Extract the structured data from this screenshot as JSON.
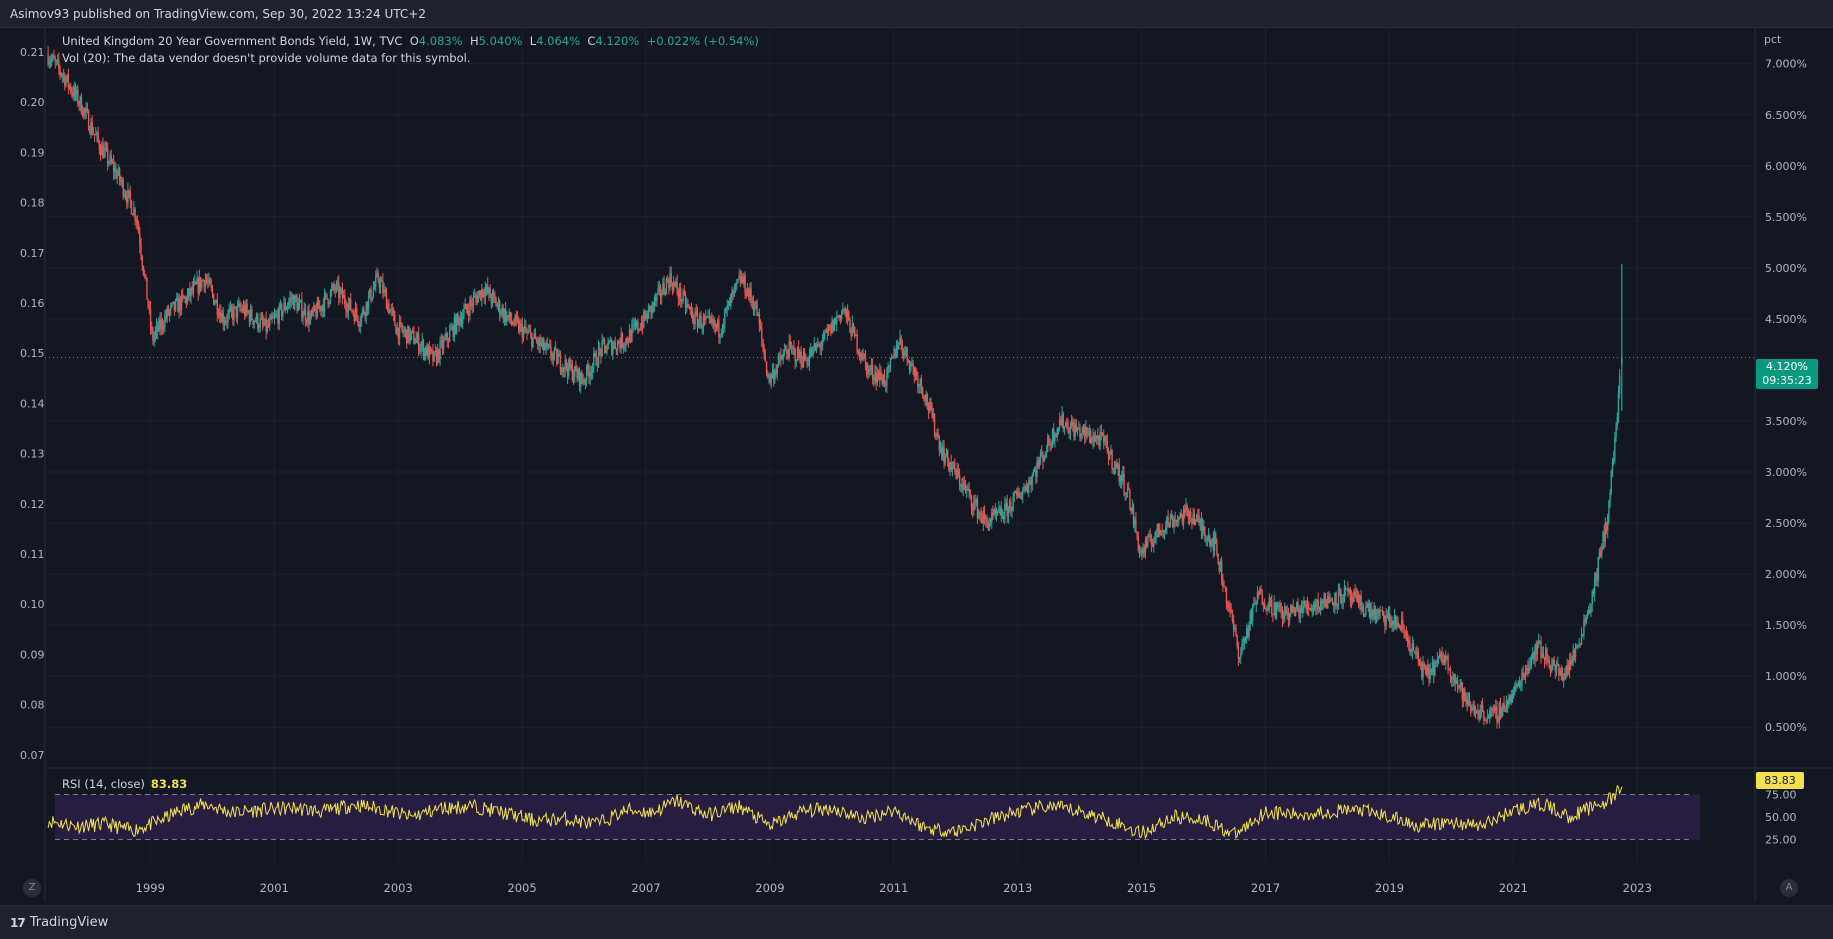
{
  "header": {
    "publish_line": "Asimov93 published on TradingView.com, Sep 30, 2022 13:24 UTC+2"
  },
  "legend": {
    "symbol": "United Kingdom 20 Year Government Bonds Yield, 1W, TVC",
    "o_label": "O",
    "o_value": "4.083%",
    "h_label": "H",
    "h_value": "5.040%",
    "l_label": "L",
    "l_value": "4.064%",
    "c_label": "C",
    "c_value": "4.120%",
    "change": "+0.022% (+0.54%)",
    "volume_line": "Vol (20): The data vendor doesn't provide volume data for this symbol."
  },
  "rsi": {
    "label": "RSI (14, close)",
    "value": "83.83",
    "tag": "83.83",
    "levels": [
      "75.00",
      "50.00",
      "25.00"
    ]
  },
  "price_tag": {
    "price": "4.120%",
    "countdown": "09:35:23"
  },
  "right_axis": {
    "unit": "pct",
    "ticks": [
      "7.000%",
      "6.500%",
      "6.000%",
      "5.500%",
      "5.000%",
      "4.500%",
      "3.500%",
      "3.000%",
      "2.500%",
      "2.000%",
      "1.500%",
      "1.000%",
      "0.500%"
    ]
  },
  "left_axis": {
    "ticks": [
      "0.21",
      "0.20",
      "0.19",
      "0.18",
      "0.17",
      "0.16",
      "0.15",
      "0.14",
      "0.13",
      "0.12",
      "0.11",
      "0.10",
      "0.09",
      "0.08",
      "0.07"
    ]
  },
  "time_axis": {
    "ticks": [
      "1999",
      "2001",
      "2003",
      "2005",
      "2007",
      "2009",
      "2011",
      "2013",
      "2015",
      "2017",
      "2019",
      "2021",
      "2023"
    ]
  },
  "footer": {
    "brand": "TradingView",
    "logo": "17",
    "left_button": "Z",
    "right_button": "A"
  },
  "colors": {
    "up": "#26a69a",
    "down": "#ef5350",
    "rsi": "#f2e24a",
    "rsi_band": "#2b1e45",
    "background": "#131722"
  },
  "chart_data": {
    "type": "candlestick",
    "interval": "1W",
    "ylabel": "pct",
    "ylim": [
      0.1,
      7.35
    ],
    "x_range": [
      1997.3,
      2024.9
    ],
    "grid": true,
    "close_path": [
      [
        1997.35,
        7.1
      ],
      [
        1997.6,
        6.9
      ],
      [
        1997.9,
        6.6
      ],
      [
        1998.2,
        6.2
      ],
      [
        1998.5,
        5.9
      ],
      [
        1998.8,
        5.5
      ],
      [
        1998.95,
        4.8
      ],
      [
        1999.05,
        4.3
      ],
      [
        1999.3,
        4.55
      ],
      [
        1999.6,
        4.7
      ],
      [
        1999.9,
        4.9
      ],
      [
        2000.2,
        4.5
      ],
      [
        2000.5,
        4.6
      ],
      [
        2000.9,
        4.4
      ],
      [
        2001.3,
        4.7
      ],
      [
        2001.6,
        4.5
      ],
      [
        2002.0,
        4.8
      ],
      [
        2002.4,
        4.5
      ],
      [
        2002.7,
        4.9
      ],
      [
        2003.0,
        4.4
      ],
      [
        2003.3,
        4.3
      ],
      [
        2003.6,
        4.1
      ],
      [
        2004.0,
        4.5
      ],
      [
        2004.4,
        4.8
      ],
      [
        2004.8,
        4.5
      ],
      [
        2005.2,
        4.3
      ],
      [
        2005.6,
        4.1
      ],
      [
        2006.0,
        3.9
      ],
      [
        2006.3,
        4.2
      ],
      [
        2006.7,
        4.3
      ],
      [
        2007.0,
        4.5
      ],
      [
        2007.4,
        4.9
      ],
      [
        2007.8,
        4.5
      ],
      [
        2008.2,
        4.4
      ],
      [
        2008.55,
        4.9
      ],
      [
        2008.8,
        4.6
      ],
      [
        2009.0,
        3.9
      ],
      [
        2009.3,
        4.2
      ],
      [
        2009.6,
        4.1
      ],
      [
        2009.9,
        4.3
      ],
      [
        2010.2,
        4.6
      ],
      [
        2010.6,
        4.0
      ],
      [
        2010.9,
        3.9
      ],
      [
        2011.1,
        4.3
      ],
      [
        2011.5,
        3.8
      ],
      [
        2011.8,
        3.2
      ],
      [
        2012.1,
        2.9
      ],
      [
        2012.5,
        2.5
      ],
      [
        2012.8,
        2.6
      ],
      [
        2013.2,
        2.9
      ],
      [
        2013.7,
        3.5
      ],
      [
        2014.0,
        3.4
      ],
      [
        2014.4,
        3.3
      ],
      [
        2014.8,
        2.8
      ],
      [
        2015.0,
        2.2
      ],
      [
        2015.4,
        2.5
      ],
      [
        2015.8,
        2.6
      ],
      [
        2016.2,
        2.3
      ],
      [
        2016.6,
        1.2
      ],
      [
        2016.9,
        1.8
      ],
      [
        2017.3,
        1.6
      ],
      [
        2017.8,
        1.7
      ],
      [
        2018.3,
        1.8
      ],
      [
        2018.8,
        1.6
      ],
      [
        2019.2,
        1.5
      ],
      [
        2019.6,
        1.0
      ],
      [
        2019.9,
        1.2
      ],
      [
        2020.3,
        0.7
      ],
      [
        2020.7,
        0.6
      ],
      [
        2021.0,
        0.8
      ],
      [
        2021.4,
        1.3
      ],
      [
        2021.8,
        1.0
      ],
      [
        2022.0,
        1.2
      ],
      [
        2022.3,
        1.8
      ],
      [
        2022.55,
        2.6
      ],
      [
        2022.7,
        3.6
      ],
      [
        2022.75,
        4.12
      ]
    ],
    "rsi_path": [
      [
        1997.35,
        46
      ],
      [
        1997.8,
        40
      ],
      [
        1998.3,
        42
      ],
      [
        1998.7,
        35
      ],
      [
        1999.1,
        44
      ],
      [
        1999.5,
        58
      ],
      [
        1999.9,
        64
      ],
      [
        2000.3,
        55
      ],
      [
        2000.8,
        58
      ],
      [
        2001.3,
        60
      ],
      [
        2001.8,
        56
      ],
      [
        2002.3,
        64
      ],
      [
        2002.8,
        58
      ],
      [
        2003.2,
        50
      ],
      [
        2003.7,
        60
      ],
      [
        2004.2,
        62
      ],
      [
        2004.7,
        55
      ],
      [
        2005.2,
        46
      ],
      [
        2005.7,
        48
      ],
      [
        2006.2,
        42
      ],
      [
        2006.7,
        58
      ],
      [
        2007.1,
        55
      ],
      [
        2007.5,
        68
      ],
      [
        2008.0,
        52
      ],
      [
        2008.5,
        62
      ],
      [
        2009.0,
        40
      ],
      [
        2009.5,
        56
      ],
      [
        2010.0,
        60
      ],
      [
        2010.5,
        48
      ],
      [
        2011.0,
        58
      ],
      [
        2011.5,
        38
      ],
      [
        2012.0,
        34
      ],
      [
        2012.5,
        46
      ],
      [
        2013.0,
        56
      ],
      [
        2013.5,
        62
      ],
      [
        2014.0,
        56
      ],
      [
        2014.5,
        46
      ],
      [
        2015.0,
        32
      ],
      [
        2015.5,
        50
      ],
      [
        2016.0,
        48
      ],
      [
        2016.5,
        30
      ],
      [
        2017.0,
        56
      ],
      [
        2017.5,
        52
      ],
      [
        2018.0,
        56
      ],
      [
        2018.5,
        58
      ],
      [
        2019.0,
        50
      ],
      [
        2019.5,
        40
      ],
      [
        2020.0,
        44
      ],
      [
        2020.5,
        40
      ],
      [
        2021.0,
        58
      ],
      [
        2021.5,
        64
      ],
      [
        2021.9,
        50
      ],
      [
        2022.3,
        62
      ],
      [
        2022.6,
        70
      ],
      [
        2022.75,
        83.83
      ]
    ],
    "rsi_levels": [
      75,
      50,
      25
    ]
  }
}
